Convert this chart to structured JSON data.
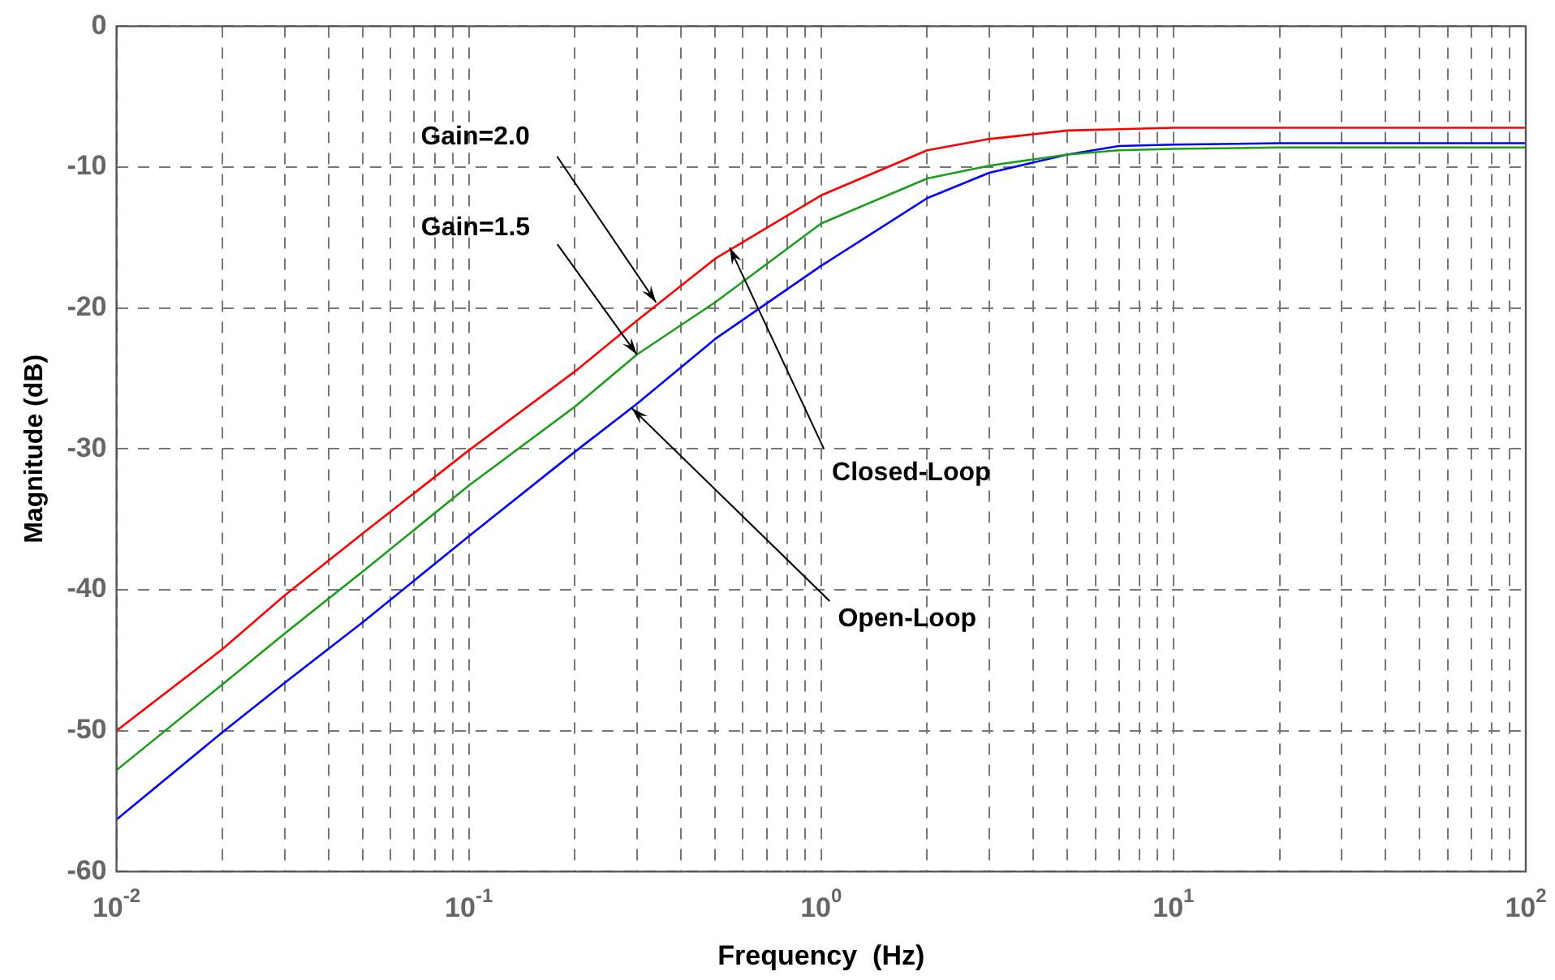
{
  "chart_data": {
    "type": "line",
    "xlabel": "Frequency  (Hz)",
    "ylabel": "Magnitude (dB)",
    "log": "x",
    "grid": true,
    "xlim": [
      0.01,
      100
    ],
    "xticks": [
      {
        "value": 0.01,
        "label": "10$^{-2}$"
      },
      {
        "value": 0.02,
        "label": null
      },
      {
        "value": 0.03,
        "label": null
      },
      {
        "value": 0.04,
        "label": null
      },
      {
        "value": 0.05,
        "label": null
      },
      {
        "value": 0.06,
        "label": null
      },
      {
        "value": 0.07,
        "label": null
      },
      {
        "value": 0.08,
        "label": null
      },
      {
        "value": 0.09,
        "label": null
      },
      {
        "value": 0.1,
        "label": "10$^{-1}$"
      },
      {
        "value": 0.2,
        "label": null
      },
      {
        "value": 0.3,
        "label": null
      },
      {
        "value": 0.4,
        "label": null
      },
      {
        "value": 0.5,
        "label": null
      },
      {
        "value": 0.6,
        "label": null
      },
      {
        "value": 0.7,
        "label": null
      },
      {
        "value": 0.8,
        "label": null
      },
      {
        "value": 0.9,
        "label": null
      },
      {
        "value": 1,
        "label": "10$^{0}$"
      },
      {
        "value": 2,
        "label": null
      },
      {
        "value": 3,
        "label": null
      },
      {
        "value": 4,
        "label": null
      },
      {
        "value": 5,
        "label": null
      },
      {
        "value": 6,
        "label": null
      },
      {
        "value": 7,
        "label": null
      },
      {
        "value": 8,
        "label": null
      },
      {
        "value": 9,
        "label": null
      },
      {
        "value": 10,
        "label": "10$^{1}$"
      },
      {
        "value": 20,
        "label": null
      },
      {
        "value": 30,
        "label": null
      },
      {
        "value": 40,
        "label": null
      },
      {
        "value": 50,
        "label": null
      },
      {
        "value": 60,
        "label": null
      },
      {
        "value": 70,
        "label": null
      },
      {
        "value": 80,
        "label": null
      },
      {
        "value": 90,
        "label": null
      },
      {
        "value": 100,
        "label": "10$^{2}$"
      }
    ],
    "ylim": [
      -60,
      0
    ],
    "yticks": [
      -60,
      -50,
      -40,
      -30,
      -20,
      -10,
      0
    ],
    "x": [
      0.01,
      0.02,
      0.03,
      0.05,
      0.1,
      0.2,
      0.3,
      0.5,
      1,
      2,
      3,
      5,
      7,
      10,
      20,
      50,
      100
    ],
    "series": [
      {
        "color": "#ff0000",
        "values": [
          -50,
          -44.2,
          -40.4,
          -36,
          -30.1,
          -24.5,
          -20.9,
          -16.5,
          -12,
          -8.8,
          -8,
          -7.4,
          -7.3,
          -7.2,
          -7.2,
          -7.2,
          -7.2
        ]
      },
      {
        "color": "#1a9f1a",
        "values": [
          -52.8,
          -46.7,
          -43.1,
          -38.7,
          -32.6,
          -27,
          -23.3,
          -19.6,
          -14,
          -10.8,
          -9.9,
          -9.1,
          -8.8,
          -8.7,
          -8.6,
          -8.6,
          -8.6
        ]
      },
      {
        "color": "#0000ff",
        "values": [
          -56.3,
          -50.1,
          -46.6,
          -42.3,
          -36.2,
          -30.2,
          -26.8,
          -22.2,
          -17,
          -12.2,
          -10.4,
          -9.1,
          -8.5,
          -8.4,
          -8.3,
          -8.3,
          -8.3
        ]
      }
    ],
    "annotations": [
      {
        "text": "Gain=2.0",
        "x": 0.34,
        "y": -19.6
      },
      {
        "text": "Gain=1.5",
        "x": 0.3,
        "y": -23.3
      },
      {
        "text": "Closed-Loop",
        "x": 0.55,
        "y": -15.7
      },
      {
        "text": "Open-Loop",
        "x": 0.29,
        "y": -27.1
      }
    ]
  }
}
